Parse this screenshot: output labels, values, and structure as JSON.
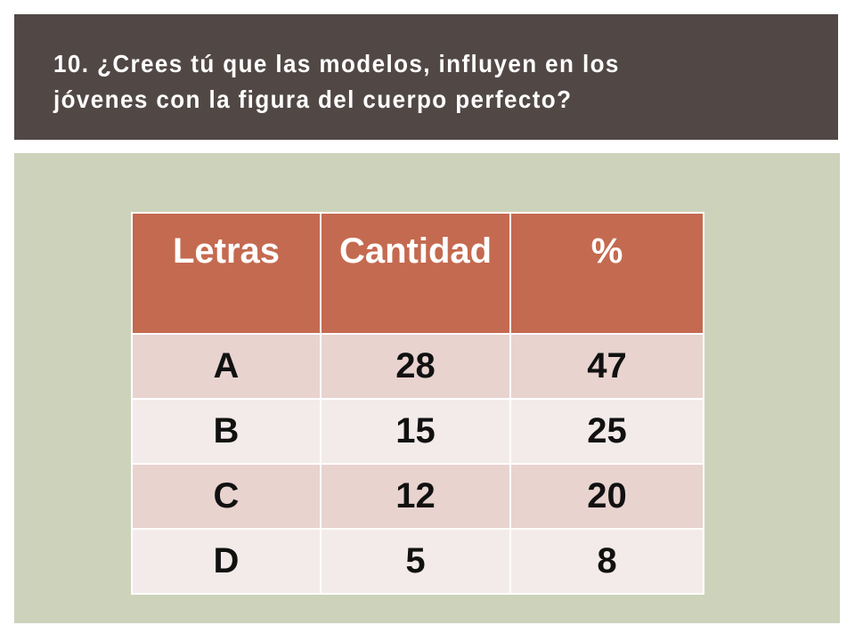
{
  "slide": {
    "title": "10. ¿Crees tú que las modelos, influyen en los jóvenes  con la figura del cuerpo perfecto?"
  },
  "table": {
    "headers": [
      "Letras",
      "Cantidad",
      "%"
    ],
    "rows": [
      [
        "A",
        "28",
        "47"
      ],
      [
        "B",
        "15",
        "25"
      ],
      [
        "C",
        "12",
        "20"
      ],
      [
        "D",
        "5",
        "8"
      ]
    ]
  },
  "colors": {
    "title_bar": "#514846",
    "panel": "#cdd2bb",
    "header_fill": "#c46a50",
    "row_odd": "#e8d3cf",
    "row_even": "#f3ebe9"
  }
}
